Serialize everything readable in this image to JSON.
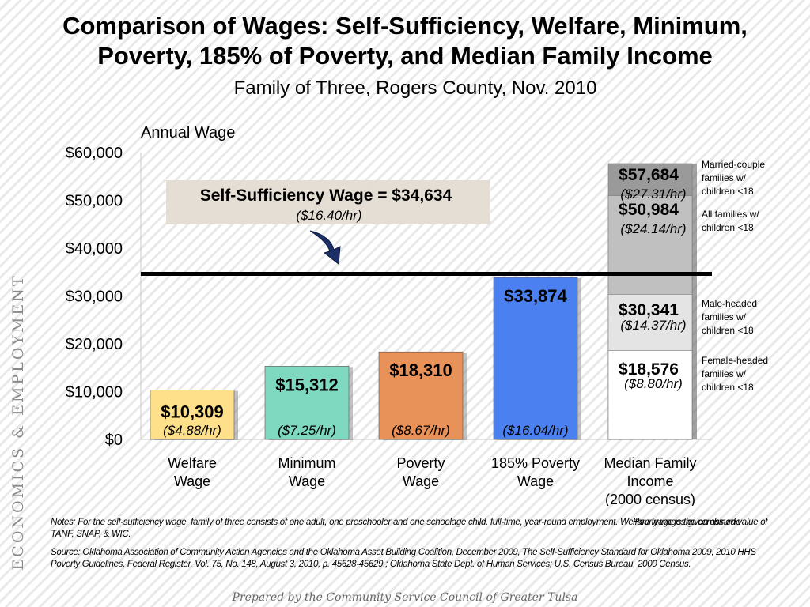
{
  "side_label": "ECONOMICS & EMPLOYMENT",
  "notes": {
    "main": "Notes:  For the self-sufficiency wage, family of three consists of one adult, one preschooler and one schoolage child. full-time, year-round employment.  Welfare wage is the combined value of TANF, SNAP, & WIC.",
    "hourly": "Hourly wages given assume",
    "source": "Source:  Oklahoma Association of Community Action Agencies and the Oklahoma Asset Building Coalition, December 2009, The Self-Sufficiency Standard for Oklahoma 2009; 2010 HHS Poverty Guidelines, Federal Register, Vol. 75, No. 148, August 3, 2010, p. 45628-45629.; Oklahoma State Dept. of Human Services; U.S. Census Bureau, 2000 Census."
  },
  "footer": "Prepared by the Community Service Council of Greater Tulsa",
  "chart_data": {
    "type": "bar",
    "title": "Comparison of Wages: Self-Sufficiency, Welfare, Minimum, Poverty, 185% of Poverty, and Median Family Income",
    "subtitle": "Family of Three, Rogers County, Nov. 2010",
    "ylabel": "Annual Wage",
    "xlabel": "",
    "ylim": [
      0,
      60000
    ],
    "yticks": [
      {
        "value": 0,
        "label": "$0"
      },
      {
        "value": 10000,
        "label": "$10,000"
      },
      {
        "value": 20000,
        "label": "$20,000"
      },
      {
        "value": 30000,
        "label": "$30,000"
      },
      {
        "value": 40000,
        "label": "$40,000"
      },
      {
        "value": 50000,
        "label": "$50,000"
      },
      {
        "value": 60000,
        "label": "$60,000"
      }
    ],
    "grid": false,
    "bars": [
      {
        "category": [
          "Welfare",
          "Wage"
        ],
        "value": 10309,
        "label": "$10,309",
        "hourly": "($4.88/hr)",
        "color": "#ffe08a"
      },
      {
        "category": [
          "Minimum",
          "Wage"
        ],
        "value": 15312,
        "label": "$15,312",
        "hourly": "($7.25/hr)",
        "color": "#7fd8c0"
      },
      {
        "category": [
          "Poverty",
          "Wage"
        ],
        "value": 18310,
        "label": "$18,310",
        "hourly": "($8.67/hr)",
        "color": "#e8925a"
      },
      {
        "category": [
          "185% Poverty",
          "Wage"
        ],
        "value": 33874,
        "label": "$33,874",
        "hourly": "($16.04/hr)",
        "color": "#4a80f0"
      }
    ],
    "median_income": {
      "category": [
        "Median Family",
        "Income",
        "(2000 census)"
      ],
      "segments": [
        {
          "value": 57684,
          "label": "$57,684",
          "hourly": "($27.31/hr)",
          "legend": [
            "Married-couple",
            "families w/",
            "children <18"
          ],
          "color": "#9a9a9a"
        },
        {
          "value": 50984,
          "label": "$50,984",
          "hourly": "($24.14/hr)",
          "legend": [
            "All families w/",
            "children <18"
          ],
          "color": "#c0c0c0"
        },
        {
          "value": 30341,
          "label": "$30,341",
          "hourly": "($14.37/hr)",
          "legend": [
            "Male-headed",
            "families w/",
            "children <18"
          ],
          "color": "#e4e4e4"
        },
        {
          "value": 18576,
          "label": "$18,576",
          "hourly": "($8.80/hr)",
          "legend": [
            "Female-headed",
            "families w/",
            "children <18"
          ],
          "color": "#ffffff"
        }
      ]
    },
    "reference_line": {
      "value": 34634,
      "label": "Self-Sufficiency Wage = $34,634",
      "hourly": "($16.40/hr)"
    }
  }
}
